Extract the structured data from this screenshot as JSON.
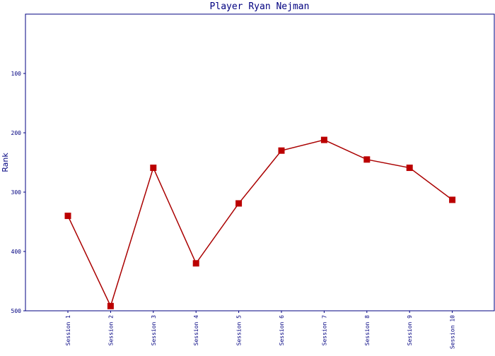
{
  "chart_data": {
    "type": "line",
    "title": "Player Ryan Nejman",
    "xlabel": "",
    "ylabel": "Rank",
    "categories": [
      "Session 1",
      "Session 2",
      "Session 3",
      "Session 4",
      "Session 5",
      "Session 6",
      "Session 7",
      "Session 8",
      "Session 9",
      "Session 10"
    ],
    "series": [
      {
        "values": [
          340,
          492,
          259,
          420,
          319,
          230,
          212,
          245,
          259,
          313
        ]
      }
    ],
    "y_ticks": [
      100,
      200,
      300,
      400,
      500
    ],
    "ylim": [
      0,
      500
    ],
    "y_inverted": true,
    "grid": false,
    "legend": "none",
    "colors": {
      "line": "#aa0000",
      "marker": "#bb0000",
      "axis": "#000080",
      "text": "#000080"
    },
    "marker": "square"
  }
}
